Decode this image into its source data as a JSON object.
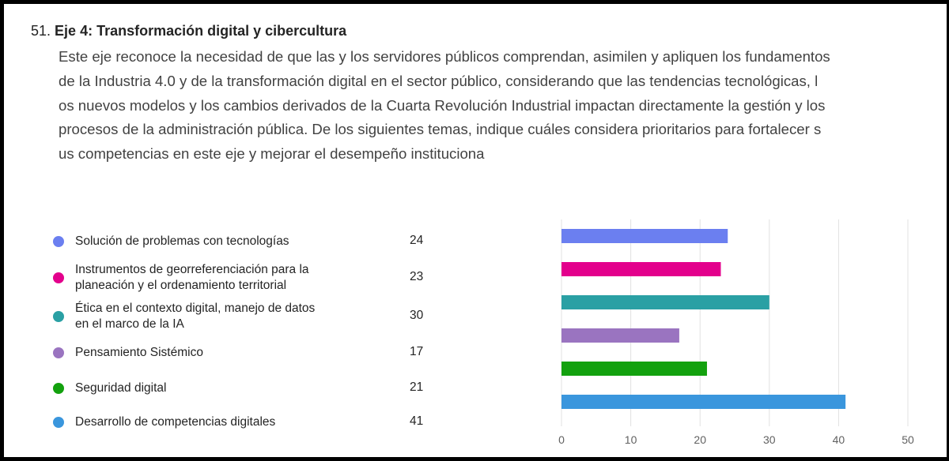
{
  "question": {
    "number": "51.",
    "title": "Eje 4: Transformación digital y cibercultura",
    "description_lines": [
      "Este eje reconoce la necesidad de que las y los servidores públicos comprendan, asimilen y apliquen los fundamentos",
      "de la Industria 4.0 y de la transformación digital en el sector público, considerando que las tendencias tecnológicas, l",
      "os nuevos modelos y los cambios derivados de la Cuarta Revolución Industrial impactan directamente la gestión y los",
      "procesos de la administración pública. De los siguientes temas, indique cuáles considera prioritarios para fortalecer s",
      "us competencias en este eje y mejorar el desempeño instituciona"
    ]
  },
  "chart_data": {
    "type": "hbar",
    "categories": [
      "Solución de problemas con tecnologías",
      "Instrumentos de georreferenciación para la\nplaneación y el ordenamiento territorial",
      "Ética en el contexto digital, manejo de datos\nen el marco de la IA",
      "Pensamiento Sistémico",
      "Seguridad digital",
      "Desarrollo de competencias digitales"
    ],
    "values": [
      24,
      23,
      30,
      17,
      21,
      41
    ],
    "colors": [
      "#6b7ff0",
      "#e3008c",
      "#2aa0a4",
      "#9a74c0",
      "#13a10e",
      "#3a96dd"
    ],
    "xlim": [
      0,
      50
    ],
    "xticks": [
      0,
      10,
      20,
      30,
      40,
      50
    ],
    "grid": true
  }
}
